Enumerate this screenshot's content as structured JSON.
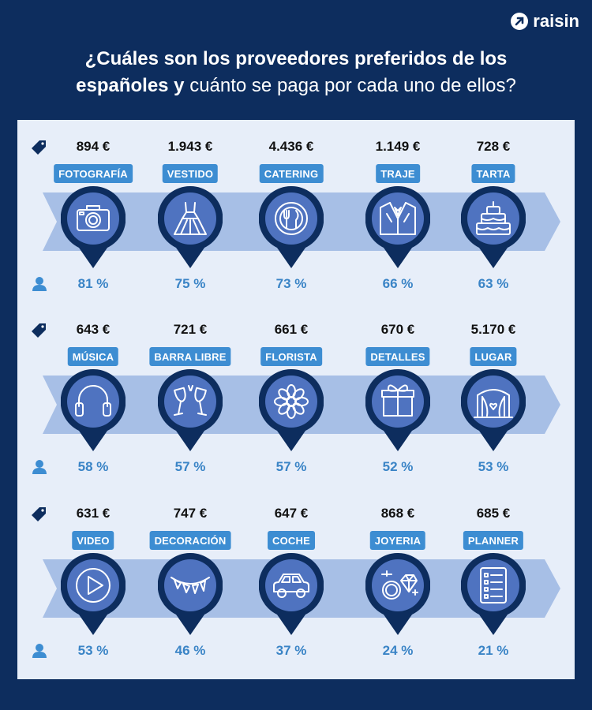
{
  "brand": {
    "name": "raisin"
  },
  "title": {
    "line1_bold": "¿Cuáles son los proveedores preferidos de los",
    "line2_bold": "españoles y",
    "line2_regular": "cuánto se paga por cada uno de ellos?"
  },
  "rows": [
    {
      "items": [
        {
          "price": "894 €",
          "label": "FOTOGRAFÍA",
          "percent": "81 %",
          "icon": "camera-icon"
        },
        {
          "price": "1.943 €",
          "label": "VESTIDO",
          "percent": "75 %",
          "icon": "dress-icon"
        },
        {
          "price": "4.436 €",
          "label": "CATERING",
          "percent": "73 %",
          "icon": "plate-cutlery-icon"
        },
        {
          "price": "1.149 €",
          "label": "TRAJE",
          "percent": "66 %",
          "icon": "suit-icon"
        },
        {
          "price": "728 €",
          "label": "TARTA",
          "percent": "63 %",
          "icon": "cake-icon"
        }
      ]
    },
    {
      "items": [
        {
          "price": "643 €",
          "label": "MÚSICA",
          "percent": "58 %",
          "icon": "headphones-icon"
        },
        {
          "price": "721 €",
          "label": "BARRA LIBRE",
          "percent": "57 %",
          "icon": "wine-glasses-icon"
        },
        {
          "price": "661 €",
          "label": "FLORISTA",
          "percent": "57 %",
          "icon": "flower-icon"
        },
        {
          "price": "670 €",
          "label": "DETALLES",
          "percent": "52 %",
          "icon": "gift-icon"
        },
        {
          "price": "5.170 €",
          "label": "LUGAR",
          "percent": "53 %",
          "icon": "venue-arch-icon"
        }
      ]
    },
    {
      "items": [
        {
          "price": "631 €",
          "label": "VIDEO",
          "percent": "53 %",
          "icon": "play-icon"
        },
        {
          "price": "747 €",
          "label": "DECORACIÓN",
          "percent": "46 %",
          "icon": "bunting-icon"
        },
        {
          "price": "647 €",
          "label": "COCHE",
          "percent": "37 %",
          "icon": "car-icon"
        },
        {
          "price": "868 €",
          "label": "JOYERIA",
          "percent": "24 %",
          "icon": "rings-icon"
        },
        {
          "price": "685 €",
          "label": "PLANNER",
          "percent": "21 %",
          "icon": "checklist-icon"
        }
      ]
    }
  ],
  "colors": {
    "background": "#0d2d5e",
    "panel": "#e7eef9",
    "band": "#a7bfe6",
    "label": "#3d8dd2",
    "pin_outer": "#0d2d5e",
    "pin_inner": "#4f73c0",
    "percent": "#3a84c6"
  }
}
